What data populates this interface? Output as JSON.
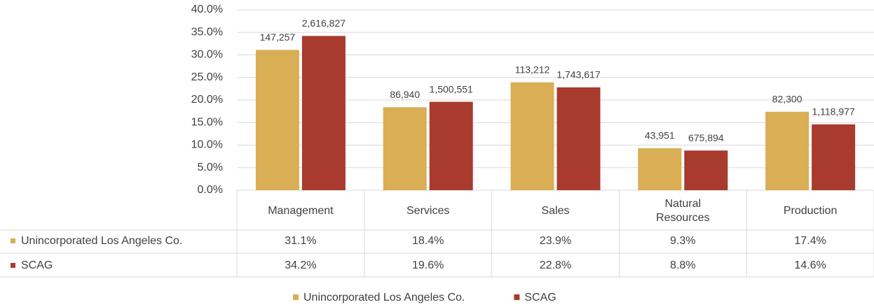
{
  "chart_data": {
    "type": "bar",
    "categories": [
      "Management",
      "Services",
      "Sales",
      "Natural Resources",
      "Production"
    ],
    "series": [
      {
        "name": "Unincorporated Los Angeles Co.",
        "color": "#D9AE55",
        "values": [
          31.1,
          18.4,
          23.9,
          9.3,
          17.4
        ],
        "value_labels": [
          "31.1%",
          "18.4%",
          "23.9%",
          "9.3%",
          "17.4%"
        ],
        "count_labels": [
          "147,257",
          "86,940",
          "113,212",
          "43,951",
          "82,300"
        ]
      },
      {
        "name": "SCAG",
        "color": "#A93A2E",
        "values": [
          34.2,
          19.6,
          22.8,
          8.8,
          14.6
        ],
        "value_labels": [
          "34.2%",
          "19.6%",
          "22.8%",
          "8.8%",
          "14.6%"
        ],
        "count_labels": [
          "2,616,827",
          "1,500,551",
          "1,743,617",
          "675,894",
          "1,118,977"
        ]
      }
    ],
    "ylim": [
      0,
      40
    ],
    "yticks": [
      {
        "value": 0,
        "label": "0.0%"
      },
      {
        "value": 5,
        "label": "5.0%"
      },
      {
        "value": 10,
        "label": "10.0%"
      },
      {
        "value": 15,
        "label": "15.0%"
      },
      {
        "value": 20,
        "label": "20.0%"
      },
      {
        "value": 25,
        "label": "25.0%"
      },
      {
        "value": 30,
        "label": "30.0%"
      },
      {
        "value": 35,
        "label": "35.0%"
      },
      {
        "value": 40,
        "label": "40.0%"
      }
    ],
    "grid": true,
    "legend": "bottom"
  }
}
